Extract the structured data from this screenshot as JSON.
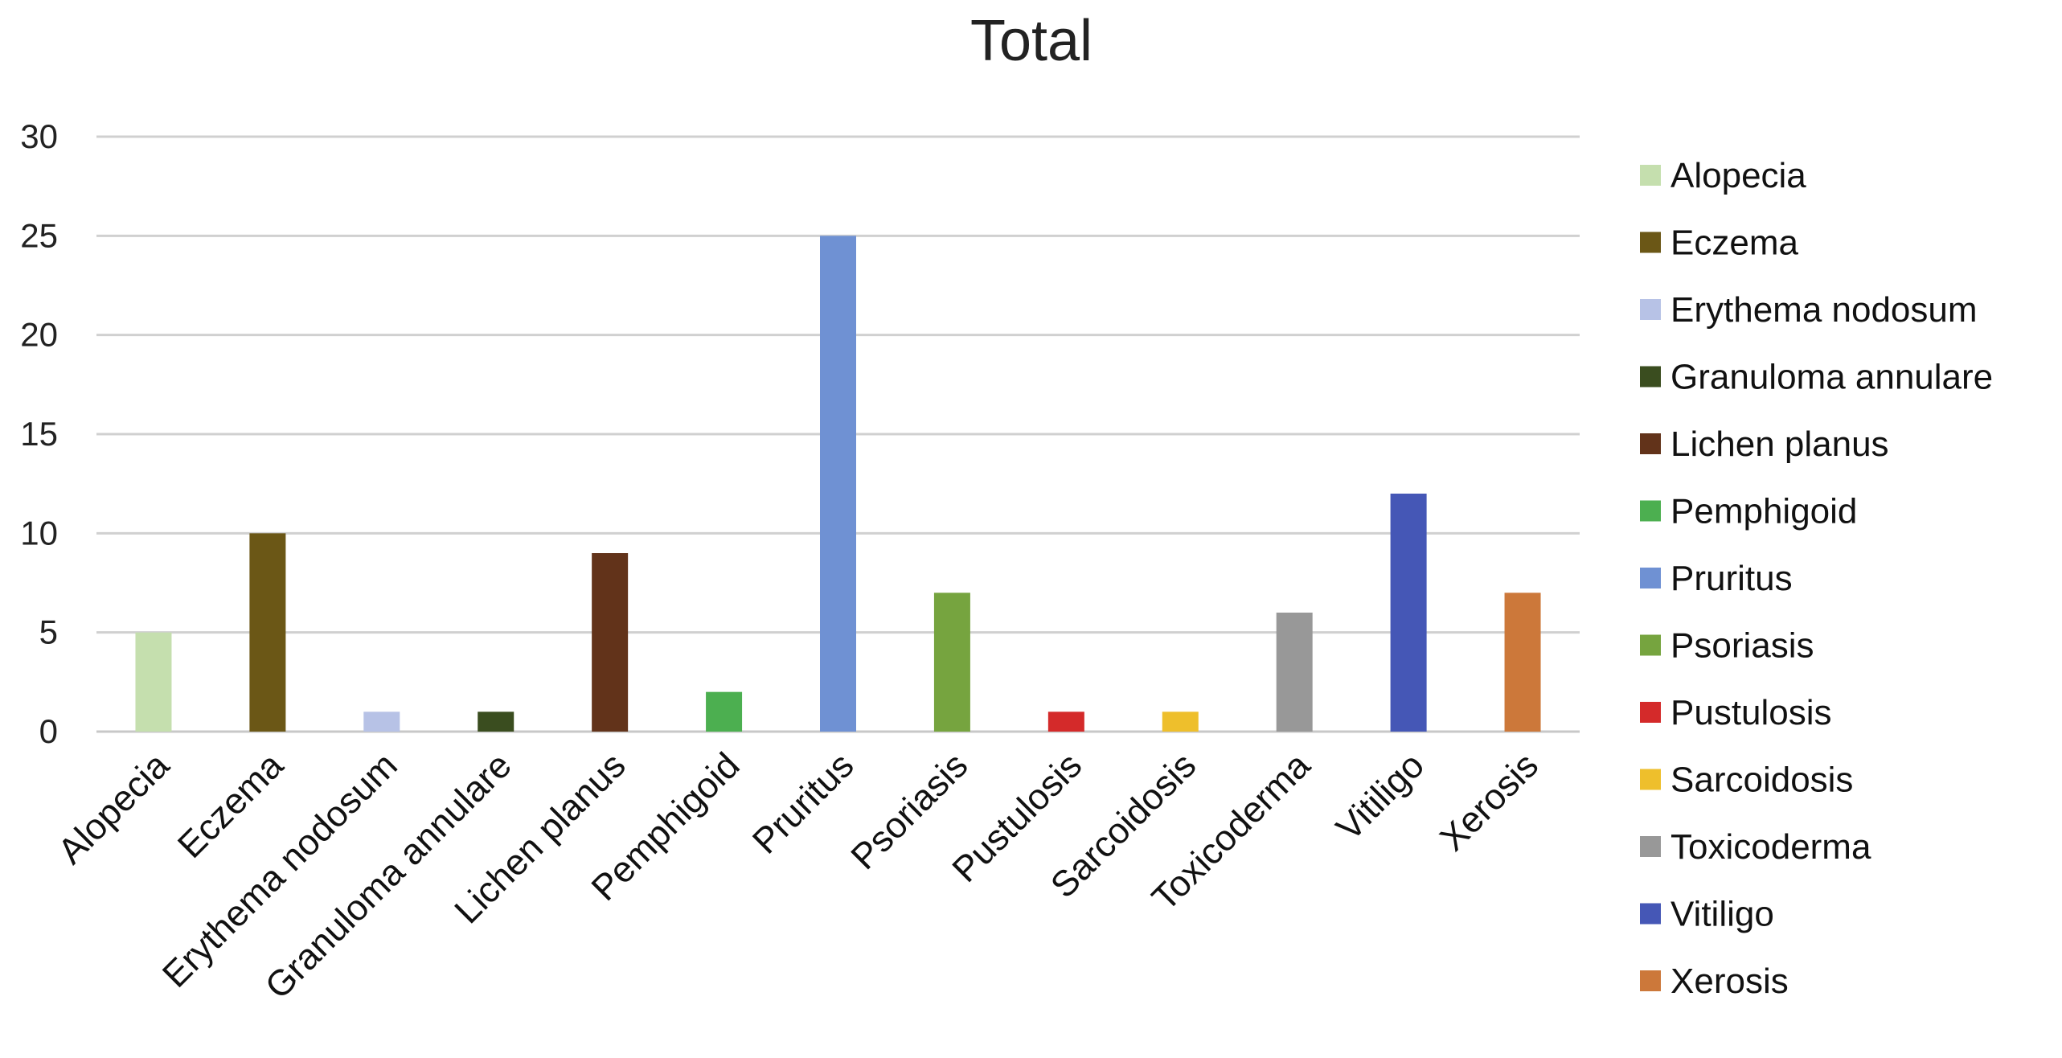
{
  "chart_data": {
    "type": "bar",
    "title": "Total",
    "xlabel": "",
    "ylabel": "",
    "ylim": [
      0,
      30
    ],
    "yticks": [
      0,
      5,
      10,
      15,
      20,
      25,
      30
    ],
    "grid": true,
    "legend_position": "right",
    "categories": [
      "Alopecia",
      "Eczema",
      "Erythema nodosum",
      "Granuloma annulare",
      "Lichen planus",
      "Pemphigoid",
      "Pruritus",
      "Psoriasis",
      "Pustulosis",
      "Sarcoidosis",
      "Toxicoderma",
      "Vitiligo",
      "Xerosis"
    ],
    "values": [
      5,
      10,
      1,
      1,
      9,
      2,
      25,
      7,
      1,
      1,
      6,
      12,
      7
    ],
    "colors": [
      "#c5dfae",
      "#6b5716",
      "#b7c2e6",
      "#3a4d1f",
      "#62331a",
      "#4caf50",
      "#6f91d3",
      "#76a43f",
      "#d42a2a",
      "#eebf2c",
      "#989898",
      "#4557b6",
      "#cc783a"
    ],
    "legend": [
      "Alopecia",
      "Eczema",
      "Erythema nodosum",
      "Granuloma annulare",
      "Lichen planus",
      "Pemphigoid",
      "Pruritus",
      "Psoriasis",
      "Pustulosis",
      "Sarcoidosis",
      "Toxicoderma",
      "Vitiligo",
      "Xerosis"
    ]
  }
}
